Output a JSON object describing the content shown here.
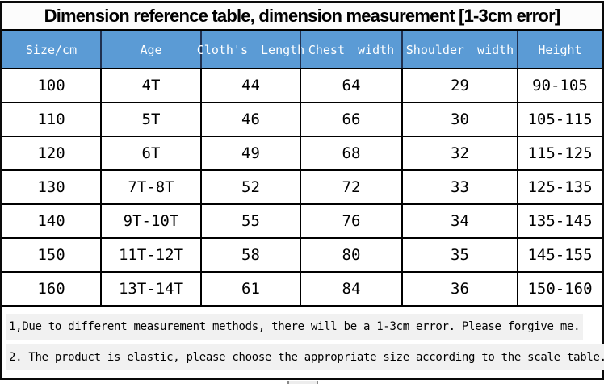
{
  "title": "Dimension reference table, dimension measurement [1-3cm error]",
  "table": {
    "columns": [
      "Size/cm",
      "Age",
      "Cloth's Length",
      "Chest width",
      "Shoulder width",
      "Height"
    ],
    "rows": [
      [
        "100",
        "4T",
        "44",
        "64",
        "29",
        "90-105"
      ],
      [
        "110",
        "5T",
        "46",
        "66",
        "30",
        "105-115"
      ],
      [
        "120",
        "6T",
        "49",
        "68",
        "32",
        "115-125"
      ],
      [
        "130",
        "7T-8T",
        "52",
        "72",
        "33",
        "125-135"
      ],
      [
        "140",
        "9T-10T",
        "55",
        "76",
        "34",
        "135-145"
      ],
      [
        "150",
        "11T-12T",
        "58",
        "80",
        "35",
        "145-155"
      ],
      [
        "160",
        "13T-14T",
        "61",
        "84",
        "36",
        "150-160"
      ]
    ]
  },
  "notes": [
    "1,Due to different measurement methods, there will be a 1-3cm error. Please forgive me.",
    "2. The product is elastic, please choose the appropriate size according to the scale table."
  ],
  "colors": {
    "header_bg": "#5B9BD5",
    "header_text": "#FFFFFF",
    "header_divider": "#1F3050",
    "grid_line": "#000000",
    "title_text": "#000000",
    "note_highlight": "#F1F1F1"
  }
}
